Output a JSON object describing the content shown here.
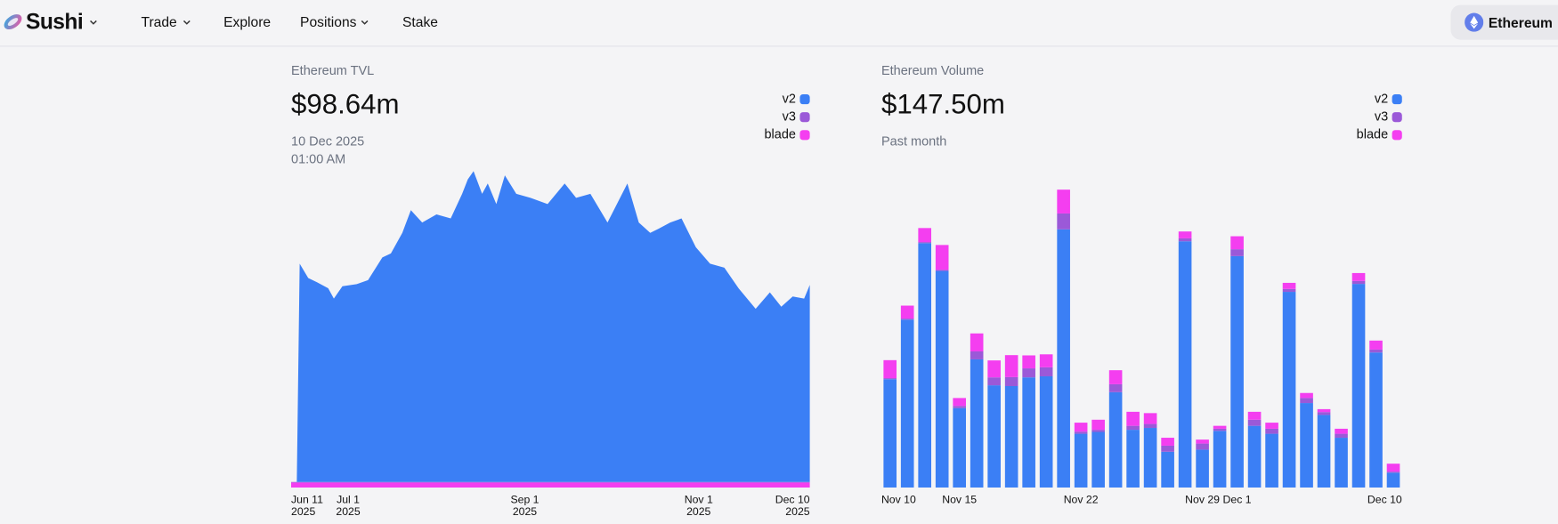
{
  "nav": {
    "brand": "Sushi",
    "items": [
      "Trade",
      "Explore",
      "Positions",
      "Stake"
    ],
    "network": "Ethereum"
  },
  "chart_data": [
    {
      "type": "area",
      "stacked": true,
      "title": "Ethereum TVL",
      "headline": "$98.64m",
      "subtitle": [
        "10 Dec 2025",
        "01:00 AM"
      ],
      "legend": "top-right",
      "grid": false,
      "x": [
        "2025-06-11",
        "2025-06-13",
        "2025-06-14",
        "2025-06-17",
        "2025-06-20",
        "2025-06-24",
        "2025-06-26",
        "2025-06-29",
        "2025-07-04",
        "2025-07-08",
        "2025-07-13",
        "2025-07-16",
        "2025-07-20",
        "2025-07-23",
        "2025-07-27",
        "2025-08-01",
        "2025-08-06",
        "2025-08-10",
        "2025-08-12",
        "2025-08-14",
        "2025-08-17",
        "2025-08-19",
        "2025-08-22",
        "2025-08-25",
        "2025-08-29",
        "2025-09-03",
        "2025-09-09",
        "2025-09-15",
        "2025-09-19",
        "2025-09-24",
        "2025-09-30",
        "2025-10-07",
        "2025-10-11",
        "2025-10-15",
        "2025-10-18",
        "2025-10-22",
        "2025-10-26",
        "2025-10-31",
        "2025-11-05",
        "2025-11-10",
        "2025-11-15",
        "2025-11-21",
        "2025-11-26",
        "2025-11-30",
        "2025-12-04",
        "2025-12-08",
        "2025-12-10"
      ],
      "xlim": [
        "2025-06-11",
        "2025-12-10"
      ],
      "xticks": [
        {
          "value": "2025-06-11",
          "label": [
            "Jun 11",
            "2025"
          ]
        },
        {
          "value": "2025-07-01",
          "label": [
            "Jul 1",
            "2025"
          ]
        },
        {
          "value": "2025-09-01",
          "label": [
            "Sep 1",
            "2025"
          ]
        },
        {
          "value": "2025-11-01",
          "label": [
            "Nov 1",
            "2025"
          ]
        },
        {
          "value": "2025-12-10",
          "label": [
            "Dec 10",
            "2025"
          ]
        }
      ],
      "ylim": [
        0,
        160
      ],
      "series": [
        {
          "name": "v2",
          "color": "#3b7ff5",
          "values": [
            0,
            0,
            106.3,
            99.3,
            97.3,
            94.3,
            89.3,
            95.3,
            96.3,
            98.3,
            109.3,
            111.3,
            121.3,
            132.3,
            126.3,
            130.3,
            128.3,
            140.3,
            147.3,
            151.3,
            140.3,
            145.3,
            135.3,
            149.3,
            140.3,
            138.3,
            135.3,
            145.3,
            138.3,
            140.3,
            126.3,
            145.3,
            126.3,
            121.3,
            123.3,
            126.3,
            128.3,
            114.3,
            106.3,
            104.3,
            94.3,
            84.3,
            92.3,
            85.3,
            90.3,
            89.3,
            95.94
          ]
        },
        {
          "name": "v3",
          "color": "#9b59d8",
          "values": [
            0.3,
            0.3,
            0.3,
            0.3,
            0.3,
            0.3,
            0.3,
            0.3,
            0.3,
            0.3,
            0.3,
            0.3,
            0.3,
            0.3,
            0.3,
            0.3,
            0.3,
            0.3,
            0.3,
            0.3,
            0.3,
            0.3,
            0.3,
            0.3,
            0.3,
            0.3,
            0.3,
            0.3,
            0.3,
            0.3,
            0.3,
            0.3,
            0.3,
            0.3,
            0.3,
            0.3,
            0.3,
            0.3,
            0.3,
            0.3,
            0.3,
            0.3,
            0.3,
            0.3,
            0.3,
            0.3,
            0.3
          ]
        },
        {
          "name": "blade",
          "color": "#f43ef0",
          "values": [
            2.4,
            2.4,
            2.4,
            2.4,
            2.4,
            2.4,
            2.4,
            2.4,
            2.4,
            2.4,
            2.4,
            2.4,
            2.4,
            2.4,
            2.4,
            2.4,
            2.4,
            2.4,
            2.4,
            2.4,
            2.4,
            2.4,
            2.4,
            2.4,
            2.4,
            2.4,
            2.4,
            2.4,
            2.4,
            2.4,
            2.4,
            2.4,
            2.4,
            2.4,
            2.4,
            2.4,
            2.4,
            2.4,
            2.4,
            2.4,
            2.4,
            2.4,
            2.4,
            2.4,
            2.4,
            2.4,
            2.4
          ]
        }
      ]
    },
    {
      "type": "bar",
      "stacked": true,
      "title": "Ethereum Volume",
      "headline": "$147.50m",
      "subtitle": [
        "Past month"
      ],
      "legend": "top-right",
      "grid": false,
      "categories": [
        "Nov 10",
        null,
        null,
        null,
        "Nov 15",
        null,
        null,
        null,
        null,
        null,
        null,
        "Nov 22",
        null,
        null,
        null,
        null,
        null,
        null,
        "Nov 29",
        null,
        "Dec 1",
        null,
        null,
        null,
        null,
        null,
        null,
        null,
        null,
        "Dec 10"
      ],
      "ylim": [
        0,
        12
      ],
      "series": [
        {
          "name": "v2",
          "color": "#3b7ff5",
          "values": [
            4.09,
            6.34,
            9.23,
            8.18,
            3.0,
            4.84,
            3.86,
            3.83,
            4.16,
            4.2,
            9.75,
            2.03,
            2.1,
            3.6,
            2.18,
            2.25,
            1.35,
            9.3,
            1.43,
            2.14,
            8.74,
            2.33,
            2.03,
            7.39,
            3.19,
            2.74,
            1.88,
            7.69,
            5.1,
            0.56
          ]
        },
        {
          "name": "v3",
          "color": "#9b59d8",
          "values": [
            0.04,
            0.04,
            0.04,
            0.04,
            0.08,
            0.3,
            0.3,
            0.34,
            0.34,
            0.34,
            0.6,
            0.08,
            0.08,
            0.3,
            0.15,
            0.15,
            0.23,
            0.11,
            0.23,
            0.08,
            0.26,
            0.23,
            0.19,
            0.11,
            0.19,
            0.11,
            0.15,
            0.11,
            0.11,
            0.04
          ]
        },
        {
          "name": "blade",
          "color": "#f43ef0",
          "values": [
            0.68,
            0.49,
            0.53,
            0.94,
            0.3,
            0.68,
            0.64,
            0.83,
            0.49,
            0.49,
            0.9,
            0.34,
            0.38,
            0.53,
            0.53,
            0.41,
            0.3,
            0.26,
            0.15,
            0.11,
            0.49,
            0.3,
            0.23,
            0.23,
            0.19,
            0.11,
            0.19,
            0.3,
            0.34,
            0.3
          ]
        }
      ]
    }
  ]
}
